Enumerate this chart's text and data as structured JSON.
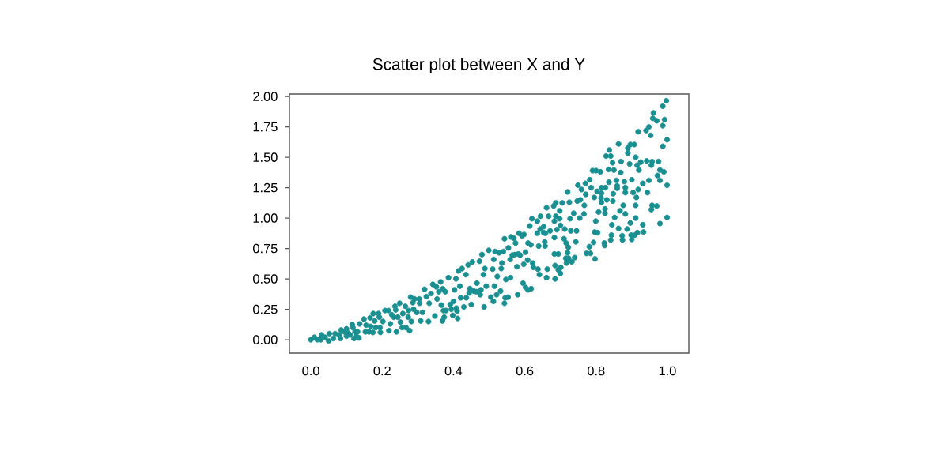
{
  "chart_data": {
    "type": "scatter",
    "title": "Scatter plot between X and Y",
    "color": "#1a8f91",
    "marker": "circle",
    "xlim": [
      -0.06,
      1.06
    ],
    "ylim": [
      -0.11,
      2.02
    ],
    "xticks": [
      {
        "value": 0,
        "label": "0.0"
      },
      {
        "value": 0.2,
        "label": "0.2"
      },
      {
        "value": 0.4,
        "label": "0.4"
      },
      {
        "value": 0.6,
        "label": "0.6"
      },
      {
        "value": 0.8,
        "label": "0.8"
      },
      {
        "value": 1,
        "label": "1.0"
      }
    ],
    "yticks": [
      {
        "value": 0,
        "label": "0.00"
      },
      {
        "value": 0.25,
        "label": "0.25"
      },
      {
        "value": 0.5,
        "label": "0.50"
      },
      {
        "value": 0.75,
        "label": "0.75"
      },
      {
        "value": 1,
        "label": "1.00"
      },
      {
        "value": 1.25,
        "label": "1.25"
      },
      {
        "value": 1.5,
        "label": "1.50"
      },
      {
        "value": 1.75,
        "label": "1.75"
      },
      {
        "value": 2,
        "label": "2.00"
      }
    ],
    "x": [
      0.0,
      0.01,
      0.018,
      0.028,
      0.03,
      0.04,
      0.05,
      0.052,
      0.063,
      0.068,
      0.08,
      0.083,
      0.085,
      0.094,
      0.1,
      0.1,
      0.105,
      0.11,
      0.116,
      0.118,
      0.121,
      0.124,
      0.127,
      0.131,
      0.135,
      0.137,
      0.149,
      0.153,
      0.155,
      0.163,
      0.166,
      0.168,
      0.174,
      0.175,
      0.179,
      0.182,
      0.19,
      0.192,
      0.194,
      0.195,
      0.202,
      0.208,
      0.218,
      0.219,
      0.223,
      0.227,
      0.233,
      0.236,
      0.238,
      0.24,
      0.244,
      0.249,
      0.251,
      0.256,
      0.258,
      0.265,
      0.267,
      0.273,
      0.274,
      0.277,
      0.28,
      0.282,
      0.286,
      0.288,
      0.291,
      0.297,
      0.304,
      0.305,
      0.308,
      0.313,
      0.319,
      0.324,
      0.33,
      0.332,
      0.337,
      0.342,
      0.348,
      0.352,
      0.354,
      0.359,
      0.364,
      0.366,
      0.369,
      0.37,
      0.372,
      0.374,
      0.377,
      0.379,
      0.386,
      0.391,
      0.394,
      0.398,
      0.4,
      0.403,
      0.407,
      0.408,
      0.41,
      0.412,
      0.414,
      0.418,
      0.42,
      0.424,
      0.429,
      0.435,
      0.436,
      0.441,
      0.444,
      0.446,
      0.45,
      0.453,
      0.457,
      0.464,
      0.466,
      0.473,
      0.475,
      0.477,
      0.48,
      0.484,
      0.486,
      0.488,
      0.492,
      0.499,
      0.505,
      0.51,
      0.512,
      0.513,
      0.515,
      0.517,
      0.521,
      0.523,
      0.528,
      0.532,
      0.534,
      0.536,
      0.54,
      0.543,
      0.543,
      0.545,
      0.547,
      0.553,
      0.554,
      0.559,
      0.56,
      0.561,
      0.565,
      0.569,
      0.572,
      0.574,
      0.578,
      0.58,
      0.582,
      0.584,
      0.587,
      0.592,
      0.595,
      0.597,
      0.598,
      0.602,
      0.602,
      0.608,
      0.609,
      0.609,
      0.614,
      0.617,
      0.618,
      0.62,
      0.622,
      0.624,
      0.635,
      0.635,
      0.637,
      0.639,
      0.641,
      0.643,
      0.644,
      0.653,
      0.653,
      0.656,
      0.657,
      0.658,
      0.661,
      0.661,
      0.663,
      0.667,
      0.671,
      0.681,
      0.683,
      0.683,
      0.683,
      0.685,
      0.685,
      0.687,
      0.687,
      0.69,
      0.694,
      0.694,
      0.698,
      0.698,
      0.7,
      0.7,
      0.701,
      0.705,
      0.71,
      0.712,
      0.715,
      0.716,
      0.717,
      0.72,
      0.72,
      0.722,
      0.723,
      0.725,
      0.727,
      0.729,
      0.732,
      0.737,
      0.74,
      0.743,
      0.745,
      0.747,
      0.749,
      0.754,
      0.756,
      0.759,
      0.766,
      0.767,
      0.77,
      0.771,
      0.773,
      0.781,
      0.782,
      0.784,
      0.786,
      0.79,
      0.793,
      0.795,
      0.796,
      0.797,
      0.799,
      0.8,
      0.803,
      0.804,
      0.807,
      0.812,
      0.814,
      0.815,
      0.815,
      0.815,
      0.823,
      0.824,
      0.825,
      0.825,
      0.826,
      0.828,
      0.83,
      0.835,
      0.836,
      0.837,
      0.841,
      0.841,
      0.843,
      0.844,
      0.846,
      0.847,
      0.848,
      0.85,
      0.852,
      0.857,
      0.859,
      0.859,
      0.863,
      0.863,
      0.867,
      0.869,
      0.87,
      0.873,
      0.874,
      0.876,
      0.879,
      0.882,
      0.882,
      0.882,
      0.887,
      0.889,
      0.889,
      0.894,
      0.896,
      0.896,
      0.898,
      0.9,
      0.9,
      0.904,
      0.907,
      0.908,
      0.911,
      0.911,
      0.911,
      0.913,
      0.915,
      0.916,
      0.918,
      0.918,
      0.92,
      0.925,
      0.931,
      0.931,
      0.933,
      0.94,
      0.942,
      0.944,
      0.948,
      0.948,
      0.953,
      0.955,
      0.955,
      0.957,
      0.957,
      0.959,
      0.961,
      0.97,
      0.97,
      0.972,
      0.975,
      0.979,
      0.979,
      0.979,
      0.987,
      0.987,
      0.987,
      0.99,
      0.992,
      0.997,
      0.999,
      0.999,
      0.999
    ],
    "values": [
      0.0,
      0.02,
      0.0,
      0.0,
      0.04,
      0.02,
      -0.01,
      0.05,
      0.01,
      0.05,
      0.04,
      0.01,
      0.08,
      0.065,
      0.09,
      0.03,
      0.055,
      0.04,
      0.125,
      0.1,
      0.01,
      0.065,
      0.03,
      0.065,
      0.015,
      0.13,
      0.17,
      0.065,
      0.12,
      0.065,
      0.18,
      0.11,
      0.06,
      0.215,
      0.155,
      0.1,
      0.215,
      0.185,
      0.1,
      0.06,
      0.15,
      0.24,
      0.24,
      0.075,
      0.13,
      0.205,
      0.185,
      0.275,
      0.245,
      0.065,
      0.185,
      0.3,
      0.145,
      0.1,
      0.215,
      0.275,
      0.1,
      0.185,
      0.24,
      0.075,
      0.35,
      0.15,
      0.305,
      0.25,
      0.335,
      0.225,
      0.335,
      0.3,
      0.155,
      0.225,
      0.415,
      0.355,
      0.15,
      0.3,
      0.38,
      0.455,
      0.195,
      0.435,
      0.335,
      0.395,
      0.475,
      0.285,
      0.155,
      0.42,
      0.24,
      0.185,
      0.395,
      0.24,
      0.51,
      0.29,
      0.25,
      0.2,
      0.315,
      0.41,
      0.5,
      0.26,
      0.235,
      0.175,
      0.565,
      0.44,
      0.345,
      0.585,
      0.27,
      0.535,
      0.345,
      0.615,
      0.385,
      0.42,
      0.29,
      0.64,
      0.4,
      0.395,
      0.465,
      0.645,
      0.37,
      0.41,
      0.7,
      0.535,
      0.27,
      0.585,
      0.44,
      0.735,
      0.35,
      0.58,
      0.315,
      0.66,
      0.44,
      0.725,
      0.37,
      0.52,
      0.715,
      0.4,
      0.585,
      0.63,
      0.725,
      0.3,
      0.83,
      0.345,
      0.495,
      0.35,
      0.755,
      0.66,
      0.51,
      0.845,
      0.695,
      0.835,
      0.7,
      0.795,
      0.6,
      0.37,
      0.705,
      0.875,
      0.695,
      0.855,
      0.465,
      0.62,
      0.865,
      0.72,
      0.43,
      0.655,
      0.795,
      0.41,
      0.935,
      0.78,
      0.42,
      0.995,
      0.63,
      0.595,
      0.975,
      0.875,
      0.58,
      0.77,
      0.535,
      0.91,
      1.015,
      0.93,
      0.88,
      0.805,
      0.77,
      0.875,
      1.085,
      0.51,
      0.58,
      1.015,
      0.895,
      1.1,
      0.975,
      0.84,
      0.705,
      0.61,
      0.5,
      1.125,
      1.015,
      0.905,
      0.705,
      0.575,
      1.06,
      0.995,
      0.545,
      0.94,
      0.595,
      1.125,
      0.83,
      0.91,
      0.67,
      0.795,
      0.63,
      1.215,
      0.715,
      0.76,
      0.67,
      1.13,
      0.995,
      0.895,
      0.64,
      1.04,
      0.675,
      0.805,
      0.895,
      1.14,
      1.27,
      1.0,
      1.15,
      1.235,
      1.035,
      1.105,
      1.285,
      1.195,
      0.71,
      0.765,
      1.315,
      0.71,
      1.25,
      1.39,
      0.8,
      1.17,
      0.885,
      0.665,
      0.975,
      1.39,
      1.22,
      0.88,
      1.05,
      1.38,
      1.165,
      1.25,
      1.13,
      1.205,
      0.795,
      0.775,
      1.075,
      1.04,
      1.25,
      1.51,
      1.15,
      1.4,
      1.295,
      1.56,
      0.82,
      1.51,
      0.86,
      0.945,
      1.455,
      1.14,
      1.2,
      1.395,
      1.005,
      1.31,
      1.265,
      1.245,
      1.61,
      0.915,
      1.06,
      1.375,
      1.465,
      0.855,
      0.82,
      1.105,
      1.3,
      1.035,
      1.25,
      1.21,
      0.91,
      1.575,
      1.535,
      1.445,
      1.605,
      0.96,
      0.86,
      1.315,
      0.825,
      1.21,
      1.605,
      0.86,
      1.5,
      1.105,
      1.0,
      1.17,
      1.435,
      0.88,
      1.71,
      1.235,
      1.395,
      1.46,
      1.285,
      0.945,
      0.885,
      1.72,
      1.47,
      1.21,
      1.75,
      1.31,
      1.68,
      1.07,
      1.435,
      1.465,
      1.105,
      1.82,
      1.865,
      1.8,
      1.1,
      1.35,
      1.465,
      0.955,
      1.395,
      1.31,
      1.59,
      1.76,
      1.92,
      1.38,
      1.81,
      1.965,
      1.645,
      1.27,
      1.005
    ]
  }
}
